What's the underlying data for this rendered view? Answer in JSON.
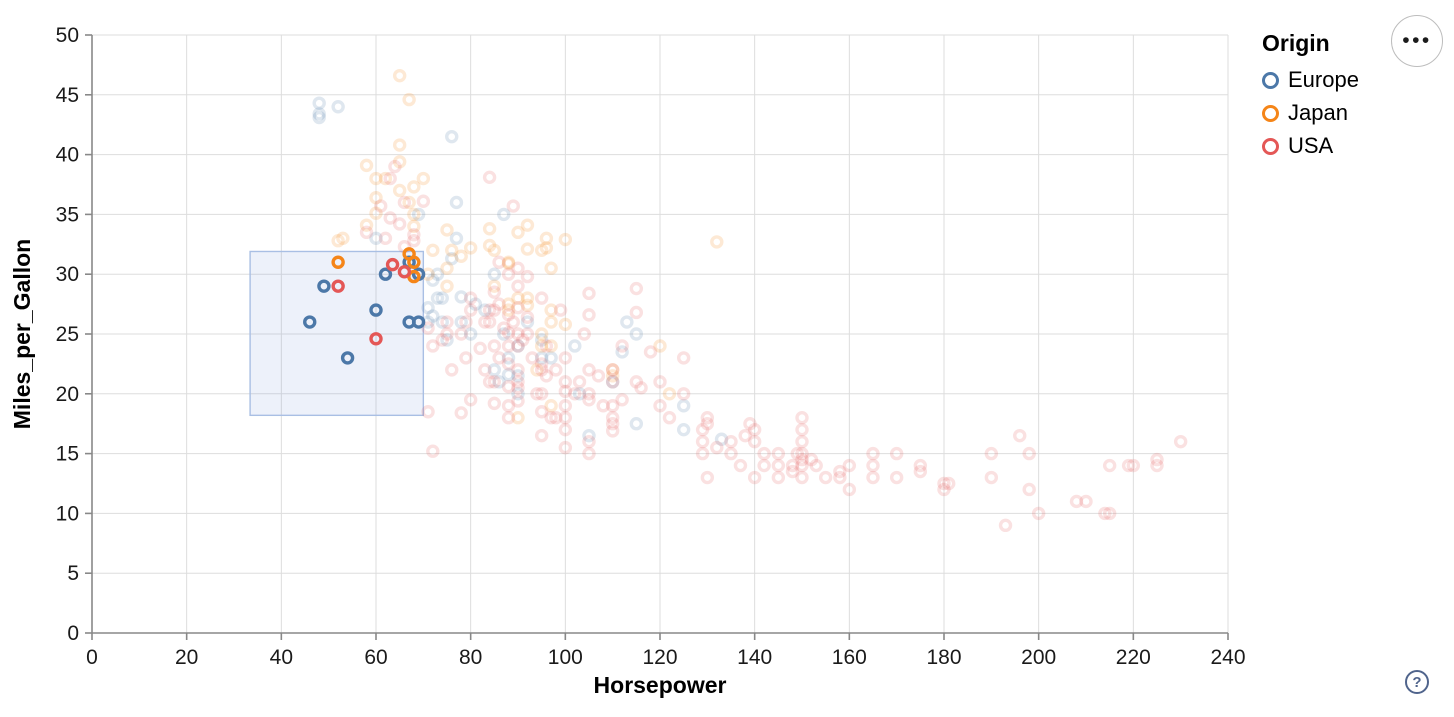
{
  "chart_data": {
    "type": "scatter",
    "title": "",
    "xlabel": "Horsepower",
    "ylabel": "Miles_per_Gallon",
    "xlim": [
      0,
      240
    ],
    "ylim": [
      0,
      50
    ],
    "xticks": [
      0,
      20,
      40,
      60,
      80,
      100,
      120,
      140,
      160,
      180,
      200,
      220,
      240
    ],
    "yticks": [
      0,
      5,
      10,
      15,
      20,
      25,
      30,
      35,
      40,
      45,
      50
    ],
    "grid": true,
    "legend": {
      "title": "Origin",
      "position": "top-right"
    },
    "brush_selection": {
      "x_range": [
        33.4,
        70.0
      ],
      "y_range": [
        18.2,
        31.9
      ]
    },
    "style": {
      "point_radius": 5,
      "point_stroke_width": 3.4,
      "faded_opacity": 0.18,
      "selected_opacity": 1,
      "grid_color": "#dddddd",
      "axis_color": "#888888",
      "tick_label_color": "#1a1a1a",
      "title_color": "#000000",
      "brush_fill": "rgba(106,143,212,0.12)",
      "brush_stroke": "#a9bfe4"
    },
    "series": [
      {
        "name": "Europe",
        "color": "#4c78a8",
        "selected_points": [
          [
            46,
            26
          ],
          [
            49,
            29
          ],
          [
            54,
            23
          ],
          [
            60,
            27
          ],
          [
            62,
            30
          ],
          [
            67,
            31
          ],
          [
            69,
            30
          ],
          [
            67,
            26
          ],
          [
            69,
            26
          ]
        ],
        "points": [
          [
            48,
            43.1
          ],
          [
            48,
            44.3
          ],
          [
            48,
            43.4
          ],
          [
            52,
            44
          ],
          [
            76,
            41.5
          ],
          [
            77,
            36
          ],
          [
            69,
            35
          ],
          [
            60,
            33
          ],
          [
            77,
            33
          ],
          [
            85,
            30
          ],
          [
            87,
            35
          ],
          [
            87,
            25
          ],
          [
            90,
            24
          ],
          [
            95,
            24.5
          ],
          [
            113,
            26
          ],
          [
            90,
            20
          ],
          [
            86,
            21
          ],
          [
            71,
            26
          ],
          [
            74,
            26
          ],
          [
            95,
            23
          ],
          [
            80,
            25
          ],
          [
            88,
            23
          ],
          [
            75,
            24.5
          ],
          [
            110,
            21
          ],
          [
            133,
            16.2
          ],
          [
            115,
            25
          ],
          [
            112,
            23.5
          ],
          [
            72,
            29.5
          ],
          [
            71,
            27.2
          ],
          [
            73,
            30
          ],
          [
            78,
            28.1
          ],
          [
            97,
            23
          ],
          [
            90,
            21.5
          ],
          [
            85,
            22
          ],
          [
            81,
            27.5
          ],
          [
            83,
            27
          ],
          [
            73,
            28
          ],
          [
            78,
            26
          ],
          [
            88,
            21.6
          ],
          [
            105,
            16.5
          ],
          [
            125,
            17
          ],
          [
            115,
            17.5
          ],
          [
            103,
            20
          ],
          [
            125,
            19
          ],
          [
            102,
            24
          ],
          [
            72,
            26.5
          ],
          [
            74,
            28
          ],
          [
            76,
            31.3
          ],
          [
            92,
            26
          ]
        ]
      },
      {
        "name": "Japan",
        "color": "#f58518",
        "selected_points": [
          [
            52,
            31
          ],
          [
            67,
            31.7
          ],
          [
            68,
            31
          ],
          [
            68,
            29.8
          ]
        ],
        "points": [
          [
            65,
            46.6
          ],
          [
            67,
            44.6
          ],
          [
            65,
            40.8
          ],
          [
            65,
            39.4
          ],
          [
            58,
            39.1
          ],
          [
            60,
            38
          ],
          [
            62,
            38
          ],
          [
            70,
            38
          ],
          [
            65,
            37
          ],
          [
            68,
            37.3
          ],
          [
            67,
            36
          ],
          [
            60,
            36.4
          ],
          [
            60,
            35.1
          ],
          [
            68,
            35
          ],
          [
            68,
            34
          ],
          [
            58,
            34.1
          ],
          [
            92,
            34.1
          ],
          [
            84,
            33.8
          ],
          [
            90,
            33.5
          ],
          [
            75,
            33.7
          ],
          [
            53,
            33
          ],
          [
            52,
            32.8
          ],
          [
            96,
            33
          ],
          [
            100,
            32.9
          ],
          [
            132,
            32.7
          ],
          [
            84,
            32.4
          ],
          [
            80,
            32.2
          ],
          [
            92,
            32.1
          ],
          [
            96,
            32.2
          ],
          [
            72,
            32
          ],
          [
            76,
            32
          ],
          [
            95,
            32
          ],
          [
            85,
            32
          ],
          [
            88,
            31
          ],
          [
            78,
            31.5
          ],
          [
            88,
            30.9
          ],
          [
            97,
            30.5
          ],
          [
            75,
            30.5
          ],
          [
            71,
            30
          ],
          [
            75,
            29
          ],
          [
            85,
            29
          ],
          [
            90,
            28
          ],
          [
            92,
            28
          ],
          [
            88,
            27.5
          ],
          [
            88,
            27
          ],
          [
            97,
            27
          ],
          [
            92,
            27.4
          ],
          [
            97,
            26
          ],
          [
            100,
            25.8
          ],
          [
            95,
            25
          ],
          [
            95,
            24
          ],
          [
            97,
            24
          ],
          [
            120,
            24
          ],
          [
            94,
            22
          ],
          [
            110,
            22
          ],
          [
            110,
            21.5
          ],
          [
            122,
            20
          ],
          [
            97,
            19
          ],
          [
            90,
            18
          ]
        ]
      },
      {
        "name": "USA",
        "color": "#e45756",
        "selected_points": [
          [
            52,
            29
          ],
          [
            60,
            24.6
          ],
          [
            63.5,
            30.8
          ],
          [
            66,
            30.2
          ]
        ],
        "points": [
          [
            63,
            34.7
          ],
          [
            64,
            39
          ],
          [
            63,
            38
          ],
          [
            66,
            36
          ],
          [
            65,
            34.2
          ],
          [
            68,
            32.8
          ],
          [
            62,
            33
          ],
          [
            58,
            33.5
          ],
          [
            66,
            32.3
          ],
          [
            70,
            36.1
          ],
          [
            61,
            35.7
          ],
          [
            68,
            33.3
          ],
          [
            84,
            38.1
          ],
          [
            89,
            35.7
          ],
          [
            80,
            27
          ],
          [
            75,
            25
          ],
          [
            83,
            26
          ],
          [
            78,
            25
          ],
          [
            79,
            26
          ],
          [
            71,
            25.5
          ],
          [
            80,
            28
          ],
          [
            75,
            26
          ],
          [
            72,
            24
          ],
          [
            74,
            24.5
          ],
          [
            82,
            23.8
          ],
          [
            76,
            22
          ],
          [
            71,
            18.5
          ],
          [
            84,
            21
          ],
          [
            72,
            15.2
          ],
          [
            78,
            18.4
          ],
          [
            80,
            19.5
          ],
          [
            83,
            22
          ],
          [
            79,
            23
          ],
          [
            110,
            18
          ],
          [
            105,
            16
          ],
          [
            100,
            17
          ],
          [
            100,
            18
          ],
          [
            100,
            19
          ],
          [
            88,
            18
          ],
          [
            95,
            22
          ],
          [
            97,
            18
          ],
          [
            85,
            21
          ],
          [
            90,
            21
          ],
          [
            88,
            19
          ],
          [
            86,
            23
          ],
          [
            105,
            15
          ],
          [
            110,
            17.5
          ],
          [
            110,
            19
          ],
          [
            129,
            17
          ],
          [
            112,
            19.5
          ],
          [
            122,
            18
          ],
          [
            105,
            20
          ],
          [
            98,
            22
          ],
          [
            95,
            20
          ],
          [
            90,
            20.5
          ],
          [
            100,
            20.2
          ],
          [
            115,
            21
          ],
          [
            110,
            21
          ],
          [
            110,
            22
          ],
          [
            95,
            22.5
          ],
          [
            88,
            24
          ],
          [
            85,
            24
          ],
          [
            84,
            26
          ],
          [
            92,
            25
          ],
          [
            107,
            21.5
          ],
          [
            105,
            22
          ],
          [
            120,
            21
          ],
          [
            125,
            23
          ],
          [
            115,
            28.8
          ],
          [
            115,
            26.8
          ],
          [
            105,
            26.6
          ],
          [
            105,
            28.4
          ],
          [
            90,
            27.2
          ],
          [
            88,
            25.1
          ],
          [
            85,
            27
          ],
          [
            84,
            27
          ],
          [
            90,
            24
          ],
          [
            90,
            25
          ],
          [
            102,
            20
          ],
          [
            100,
            23
          ],
          [
            88,
            26.6
          ],
          [
            110,
            16.9
          ],
          [
            100,
            15.5
          ],
          [
            98,
            18
          ],
          [
            95,
            16.5
          ],
          [
            95,
            18.5
          ],
          [
            100,
            21
          ],
          [
            105,
            19.5
          ],
          [
            88,
            20.6
          ],
          [
            85,
            19.2
          ],
          [
            90,
            19.4
          ],
          [
            94,
            20
          ],
          [
            96,
            21.5
          ],
          [
            116,
            20.5
          ],
          [
            125,
            20
          ],
          [
            108,
            19
          ],
          [
            103,
            21
          ],
          [
            120,
            19
          ],
          [
            90,
            22
          ],
          [
            88,
            22.5
          ],
          [
            93,
            23
          ],
          [
            96,
            24
          ],
          [
            91,
            24.5
          ],
          [
            87,
            25.5
          ],
          [
            89,
            26
          ],
          [
            86,
            27.5
          ],
          [
            92,
            26.4
          ],
          [
            99,
            27
          ],
          [
            104,
            25
          ],
          [
            112,
            24
          ],
          [
            118,
            23.5
          ],
          [
            95,
            28
          ],
          [
            85,
            28.5
          ],
          [
            90,
            29
          ],
          [
            88,
            30
          ],
          [
            92,
            29.8
          ],
          [
            90,
            30.5
          ],
          [
            86,
            31
          ],
          [
            130,
            18
          ],
          [
            165,
            15
          ],
          [
            150,
            18
          ],
          [
            150,
            16
          ],
          [
            140,
            17
          ],
          [
            198,
            15
          ],
          [
            220,
            14
          ],
          [
            215,
            14
          ],
          [
            225,
            14
          ],
          [
            190,
            15
          ],
          [
            170,
            15
          ],
          [
            160,
            14
          ],
          [
            150,
            15
          ],
          [
            225,
            14.5
          ],
          [
            215,
            10
          ],
          [
            200,
            10
          ],
          [
            210,
            11
          ],
          [
            193,
            9
          ],
          [
            165,
            14
          ],
          [
            175,
            14
          ],
          [
            153,
            14
          ],
          [
            150,
            14
          ],
          [
            180,
            12
          ],
          [
            170,
            13
          ],
          [
            175,
            13.5
          ],
          [
            165,
            13
          ],
          [
            208,
            11
          ],
          [
            155,
            13
          ],
          [
            160,
            12
          ],
          [
            190,
            13
          ],
          [
            158,
            13
          ],
          [
            145,
            13
          ],
          [
            137,
            14
          ],
          [
            198,
            12
          ],
          [
            150,
            13
          ],
          [
            158,
            13.5
          ],
          [
            150,
            14.5
          ],
          [
            180,
            12.5
          ],
          [
            138,
            16.5
          ],
          [
            149,
            15
          ],
          [
            145,
            14
          ],
          [
            230,
            16
          ],
          [
            140,
            13
          ],
          [
            148,
            14
          ],
          [
            129,
            15
          ],
          [
            152,
            14.5
          ],
          [
            142,
            14
          ],
          [
            181,
            12.5
          ],
          [
            130,
            13
          ],
          [
            140,
            16
          ],
          [
            142,
            15
          ],
          [
            148,
            13.5
          ],
          [
            135,
            16
          ],
          [
            129,
            16
          ],
          [
            130,
            17.5
          ],
          [
            135,
            15
          ],
          [
            132,
            15.5
          ],
          [
            145,
            15
          ],
          [
            150,
            17
          ],
          [
            139,
            17.5
          ],
          [
            214,
            10
          ],
          [
            219,
            14
          ],
          [
            196,
            16.5
          ]
        ]
      }
    ]
  },
  "controls": {
    "menu_glyph": "•••",
    "help_glyph": "?"
  }
}
